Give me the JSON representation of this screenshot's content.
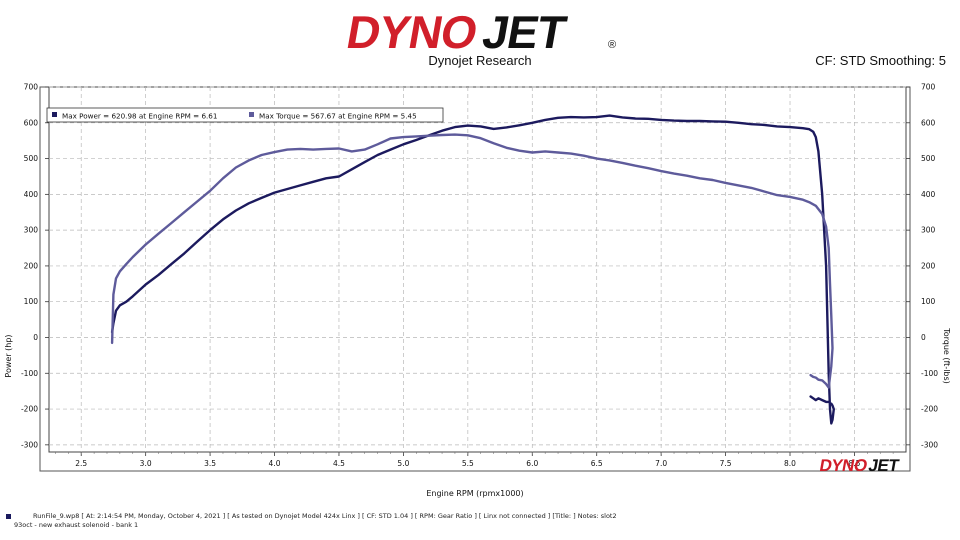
{
  "header": {
    "logo_text": "DYNOJET",
    "registered_mark": "®",
    "subtitle": "Dynojet Research",
    "cf_info": "CF: STD Smoothing: 5"
  },
  "colors": {
    "power": "#1c1a5e",
    "torque": "#5e5b9b",
    "logo_red": "#d11f2a",
    "logo_black": "#111111"
  },
  "chart_data": {
    "type": "line",
    "title": "",
    "xlabel": "Engine RPM (rpmx1000)",
    "ylabel": "Power (hp)",
    "ylabel_right": "Torque (ft-lbs)",
    "xlim": [
      2.25,
      8.9
    ],
    "ylim": [
      -320,
      700
    ],
    "xticks": [
      2.5,
      3.0,
      3.5,
      4.0,
      4.5,
      5.0,
      5.5,
      6.0,
      6.5,
      7.0,
      7.5,
      8.0,
      8.5
    ],
    "xtick_labels": [
      "2.5",
      "3.0",
      "3.5",
      "4.0",
      "4.5",
      "5.0",
      "5.5",
      "6.0",
      "6.5",
      "7.0",
      "7.5",
      "8.0",
      "8.5"
    ],
    "yticks": [
      -300,
      -200,
      -100,
      0,
      100,
      200,
      300,
      400,
      500,
      600,
      700
    ],
    "ytick_labels": [
      "-300",
      "-200",
      "-100",
      "0",
      "100",
      "200",
      "300",
      "400",
      "500",
      "600",
      "700"
    ],
    "grid": true,
    "legend": {
      "position": "top-left",
      "entries": [
        "Max Power = 620.98 at Engine RPM = 6.61",
        "Max Torque = 567.67 at Engine RPM = 5.45"
      ]
    },
    "watermark": "DYNOJET",
    "series": [
      {
        "key": "power",
        "x": [
          2.74,
          2.75,
          2.77,
          2.8,
          2.85,
          2.9,
          3.0,
          3.1,
          3.2,
          3.3,
          3.4,
          3.5,
          3.6,
          3.7,
          3.8,
          3.9,
          4.0,
          4.1,
          4.2,
          4.3,
          4.4,
          4.5,
          4.6,
          4.7,
          4.8,
          4.9,
          5.0,
          5.1,
          5.2,
          5.3,
          5.4,
          5.5,
          5.6,
          5.7,
          5.8,
          5.9,
          6.0,
          6.1,
          6.2,
          6.3,
          6.4,
          6.5,
          6.6,
          6.7,
          6.8,
          6.9,
          7.0,
          7.1,
          7.2,
          7.3,
          7.4,
          7.5,
          7.6,
          7.7,
          7.8,
          7.9,
          8.0,
          8.1,
          8.15,
          8.18,
          8.2,
          8.22,
          8.25,
          8.28,
          8.3,
          8.31,
          8.32,
          8.33,
          8.34,
          8.33,
          8.32,
          8.3,
          8.28,
          8.25,
          8.22,
          8.2,
          8.18,
          8.16
        ],
        "values": [
          15,
          40,
          75,
          90,
          100,
          115,
          148,
          175,
          205,
          235,
          268,
          300,
          330,
          355,
          375,
          390,
          405,
          415,
          425,
          435,
          445,
          450,
          470,
          490,
          510,
          525,
          540,
          552,
          565,
          578,
          588,
          592,
          590,
          583,
          587,
          593,
          600,
          608,
          614,
          616,
          615,
          616,
          620,
          615,
          612,
          611,
          608,
          606,
          605,
          605,
          604,
          603,
          600,
          596,
          594,
          590,
          588,
          585,
          582,
          575,
          560,
          520,
          400,
          200,
          -100,
          -200,
          -240,
          -230,
          -200,
          -190,
          -185,
          -180,
          -180,
          -175,
          -170,
          -175,
          -170,
          -165
        ]
      },
      {
        "key": "torque",
        "x": [
          2.74,
          2.75,
          2.77,
          2.8,
          2.85,
          2.9,
          3.0,
          3.1,
          3.2,
          3.3,
          3.4,
          3.5,
          3.6,
          3.7,
          3.8,
          3.9,
          4.0,
          4.1,
          4.2,
          4.3,
          4.4,
          4.5,
          4.6,
          4.7,
          4.8,
          4.9,
          5.0,
          5.1,
          5.2,
          5.3,
          5.4,
          5.5,
          5.6,
          5.7,
          5.8,
          5.9,
          6.0,
          6.1,
          6.2,
          6.3,
          6.4,
          6.5,
          6.6,
          6.7,
          6.8,
          6.9,
          7.0,
          7.1,
          7.2,
          7.3,
          7.4,
          7.5,
          7.6,
          7.7,
          7.8,
          7.9,
          8.0,
          8.1,
          8.15,
          8.2,
          8.25,
          8.28,
          8.3,
          8.31,
          8.32,
          8.33,
          8.32,
          8.31,
          8.3,
          8.28,
          8.25,
          8.22,
          8.2,
          8.18,
          8.16
        ],
        "values": [
          -15,
          120,
          165,
          185,
          205,
          225,
          260,
          290,
          320,
          350,
          380,
          410,
          445,
          475,
          495,
          510,
          518,
          525,
          527,
          525,
          527,
          528,
          520,
          525,
          540,
          556,
          560,
          562,
          564,
          566,
          567,
          565,
          557,
          543,
          530,
          522,
          517,
          520,
          517,
          514,
          508,
          500,
          495,
          488,
          480,
          473,
          465,
          458,
          452,
          445,
          440,
          432,
          425,
          418,
          408,
          398,
          393,
          385,
          378,
          368,
          345,
          310,
          250,
          150,
          60,
          -30,
          -80,
          -110,
          -140,
          -130,
          -120,
          -118,
          -112,
          -110,
          -105
        ]
      }
    ]
  },
  "footer": {
    "line1": "RunFile_9.wp8 [ At: 2:14:54 PM, Monday, October 4, 2021 ] [ As tested on Dynojet Model 424x Linx ] [ CF: STD 1.04 ] [ RPM: Gear Ratio ] [ Linx not connected ] [Title: ]   Notes: slot2",
    "line2": "93oct - new exhaust  solenoid - bank 1"
  }
}
